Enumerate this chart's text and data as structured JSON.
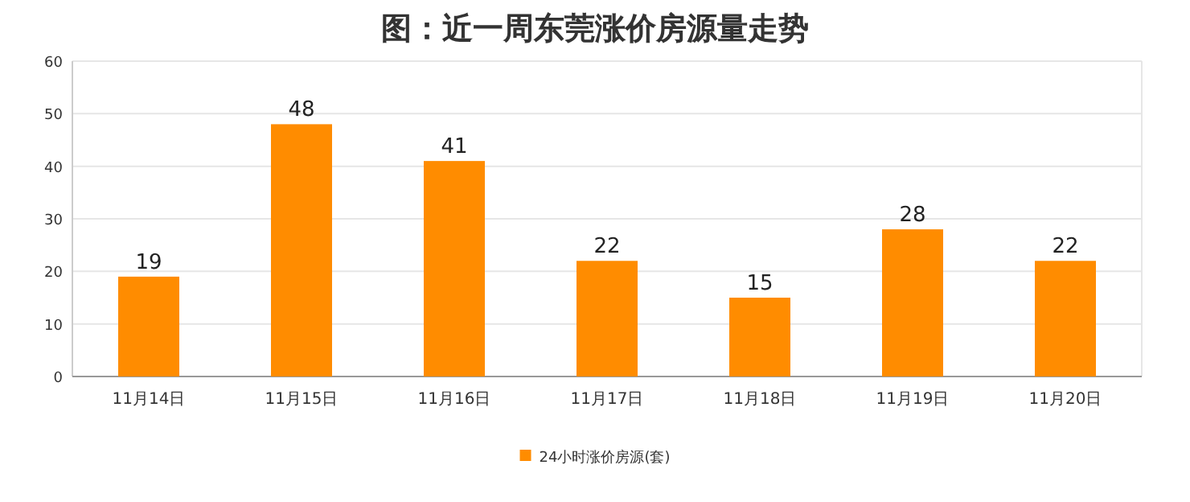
{
  "chart_data": {
    "type": "bar",
    "title": "图：近一周东莞涨价房源量走势",
    "categories": [
      "11月14日",
      "11月15日",
      "11月16日",
      "11月17日",
      "11月18日",
      "11月19日",
      "11月20日"
    ],
    "series": [
      {
        "name": "24小时涨价房源(套)",
        "color": "#ff8c00",
        "values": [
          19,
          48,
          41,
          22,
          15,
          28,
          22
        ]
      }
    ],
    "ylim": [
      0,
      60
    ],
    "yticks": [
      0,
      10,
      20,
      30,
      40,
      50,
      60
    ],
    "grid": "y",
    "legend": "bottom",
    "data_labels": true
  }
}
